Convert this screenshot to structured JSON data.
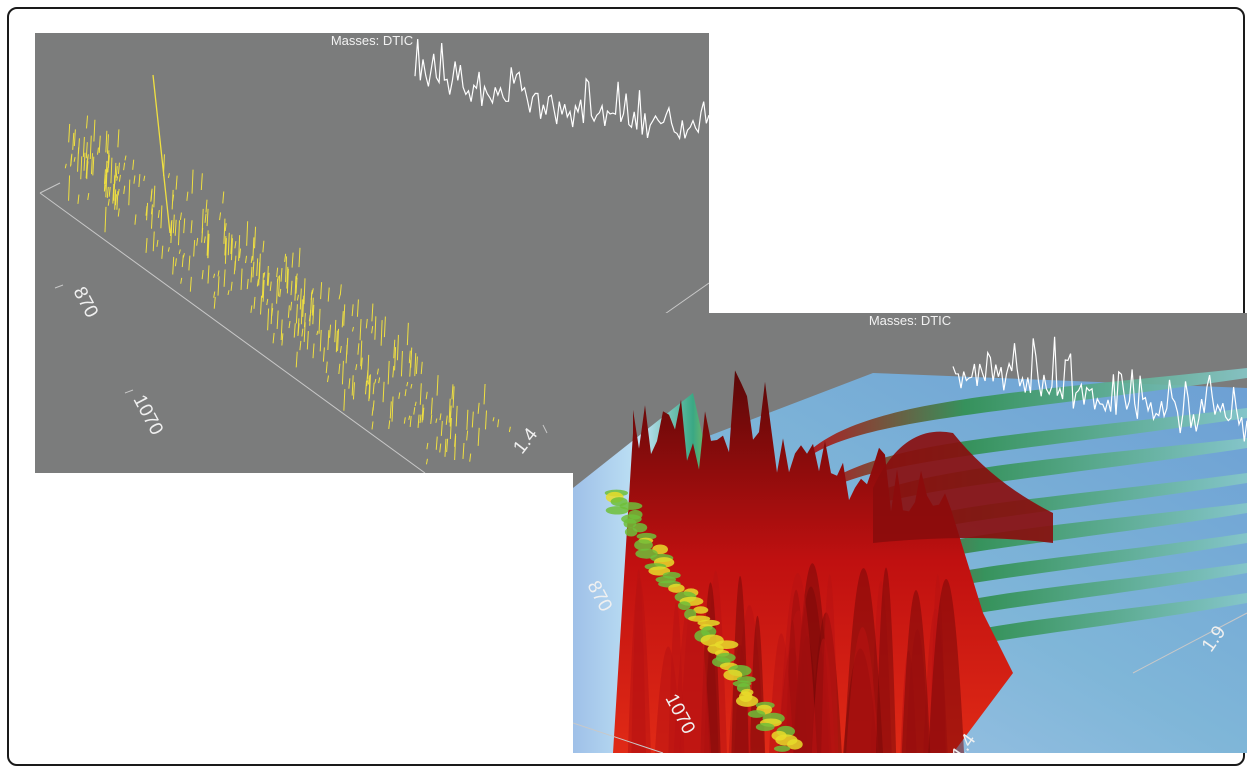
{
  "chart_data": [
    {
      "type": "scatter",
      "title": "Masses:  DTIC",
      "tick_labels_mass": [
        "870",
        "1070"
      ],
      "tick_labels_time": [
        "1.4"
      ],
      "colors": {
        "background": "#7b7c7c",
        "points": "#f0e040",
        "trace": "#ffffff",
        "axes": "#c8c8c8"
      }
    },
    {
      "type": "heatmap",
      "title": "Masses:  DTIC",
      "tick_labels_mass": [
        "870",
        "1070"
      ],
      "tick_labels_time": [
        "1.4",
        "1.9"
      ],
      "colors": {
        "background": "#7b7c7c",
        "low": "#8fb4e0",
        "mid": "#3fae8a",
        "high": "#c80f0f",
        "peak": "#4a0a0a",
        "trace": "#ffffff"
      }
    }
  ]
}
